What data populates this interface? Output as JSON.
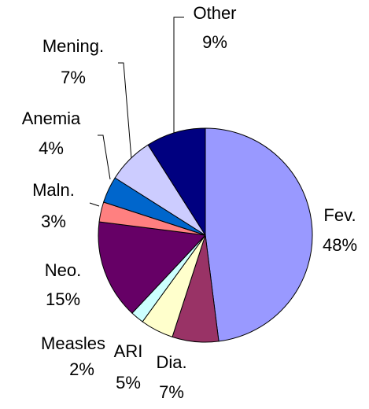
{
  "chart_data": {
    "type": "pie",
    "categories": [
      "Fev.",
      "Dia.",
      "ARI",
      "Measles",
      "Neo.",
      "Maln.",
      "Anemia",
      "Mening.",
      "Other"
    ],
    "values": [
      48,
      7,
      5,
      2,
      15,
      3,
      4,
      7,
      9
    ],
    "value_labels": [
      "48%",
      "7%",
      "5%",
      "2%",
      "15%",
      "3%",
      "4%",
      "7%",
      "9%"
    ],
    "colors": [
      "#9999ff",
      "#993366",
      "#ffffcc",
      "#ccffff",
      "#660066",
      "#ff8080",
      "#0066cc",
      "#ccccff",
      "#000080"
    ]
  }
}
